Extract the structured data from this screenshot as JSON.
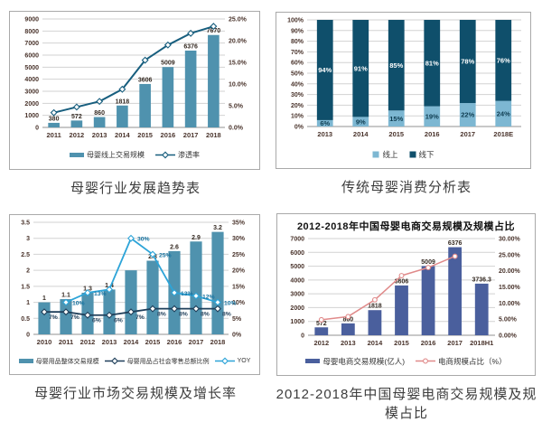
{
  "captions": {
    "tl": "母婴行业发展趋势表",
    "tr": "传统母婴消费分析表",
    "bl": "母婴行业市场交易规模及增长率",
    "br": "2012-2018年中国母婴电商交易规模及规模占比"
  },
  "colors": {
    "teal_bar": "#4f92ae",
    "dark_teal_line": "#175e7e",
    "stack_light": "#7db7d2",
    "stack_dark": "#0f4f6b",
    "navy_line": "#1f3f5a",
    "yoy_blue": "#2da4d8",
    "indigo_bar": "#4a5f9d",
    "salmon_line": "#e08a8a",
    "tick_text": "#4a342c",
    "grid_line": "#d2d2d2"
  },
  "chart_data": [
    {
      "id": "tl",
      "type": "bar-line",
      "caption": "母婴行业发展趋势表",
      "categories": [
        "2011",
        "2012",
        "2013",
        "2014",
        "2015",
        "2016",
        "2017",
        "2018"
      ],
      "left_axis": {
        "min": 0,
        "max": 9000,
        "tick_labels": [
          "0",
          "1000",
          "2000",
          "3000",
          "4000",
          "5000",
          "6000",
          "7000",
          "8000",
          "9000"
        ]
      },
      "right_axis": {
        "min": 0,
        "max": 25,
        "tick_labels": [
          "0.0%",
          "5.0%",
          "10.0%",
          "15.0%",
          "20.0%",
          "25.0%"
        ]
      },
      "bars": {
        "name": "母婴线上交易规模",
        "color": "#4f92ae",
        "values": [
          380,
          572,
          860,
          1818,
          3606,
          5009,
          6376,
          7670
        ],
        "labels": [
          "380",
          "572",
          "860",
          "1818",
          "3606",
          "5009",
          "6376",
          "7670"
        ]
      },
      "lines": [
        {
          "name": "渗透率",
          "axis": "right",
          "color": "#175e7e",
          "marker": "diamond",
          "values": [
            3.4,
            4.7,
            6,
            8.8,
            15.5,
            19,
            21.7,
            23.3
          ],
          "labels": []
        }
      ],
      "legend": [
        {
          "type": "bar",
          "color": "#4f92ae",
          "label": "母婴线上交易规模"
        },
        {
          "type": "line",
          "color": "#175e7e",
          "marker": "diamond",
          "label": "渗透率"
        }
      ]
    },
    {
      "id": "tr",
      "type": "stacked-bar",
      "caption": "传统母婴消费分析表",
      "categories": [
        "2013",
        "2014",
        "2015",
        "2016",
        "2017",
        "2018E"
      ],
      "left_axis": {
        "min": 0,
        "max": 100,
        "tick_labels": [
          "0%",
          "10%",
          "20%",
          "30%",
          "40%",
          "50%",
          "60%",
          "70%",
          "80%",
          "90%",
          "100%"
        ]
      },
      "stacks": [
        {
          "name": "线上",
          "color": "#7db7d2",
          "label_color": "#0e3c50",
          "values": [
            6,
            9,
            15,
            19,
            22,
            24
          ],
          "labels": [
            "6%",
            "9%",
            "15%",
            "19%",
            "22%",
            "24%"
          ]
        },
        {
          "name": "线下",
          "color": "#0f4f6b",
          "label_color": "#ffffff",
          "values": [
            94,
            91,
            85,
            81,
            78,
            76
          ],
          "labels": [
            "94%",
            "91%",
            "85%",
            "81%",
            "78%",
            "76%"
          ]
        }
      ],
      "legend": [
        {
          "type": "square",
          "color": "#7db7d2",
          "label": "线上"
        },
        {
          "type": "square",
          "color": "#0f4f6b",
          "label": "线下"
        }
      ]
    },
    {
      "id": "bl",
      "type": "bar-line",
      "caption": "母婴行业市场交易规模及增长率",
      "categories": [
        "2010",
        "2011",
        "2012",
        "2013",
        "2014",
        "2015",
        "2016",
        "2017",
        "2018"
      ],
      "left_axis": {
        "min": 0,
        "max": 3.5,
        "tick_labels": [
          "0",
          "0.5",
          "1",
          "1.5",
          "2",
          "2.5",
          "3",
          "3.5"
        ]
      },
      "right_axis": {
        "min": 0,
        "max": 35,
        "tick_labels": [
          "0%",
          "5%",
          "10%",
          "15%",
          "20%",
          "25%",
          "30%",
          "35%"
        ]
      },
      "bars": {
        "name": "母婴用品整体交易规模",
        "color": "#4f92ae",
        "values": [
          1,
          1.1,
          1.3,
          1.4,
          2,
          2.3,
          2.6,
          2.9,
          3.2
        ],
        "labels": [
          "1",
          "1.1",
          "1.3",
          "1.4",
          "",
          "2.3",
          "2.6",
          "2.9",
          "3.2"
        ]
      },
      "lines": [
        {
          "name": "母婴用品占社会零售总额比例",
          "axis": "right",
          "color": "#1f3f5a",
          "marker": "diamond",
          "values": [
            7,
            7,
            6,
            6,
            7,
            8,
            8,
            8,
            8
          ],
          "labels": [
            "7%",
            "7%",
            "6%",
            "6%",
            "7%",
            "8%",
            "8%",
            "8%",
            "8%"
          ],
          "label_color": "#1f3f5a"
        },
        {
          "name": "YOY",
          "axis": "right",
          "color": "#2da4d8",
          "marker": "diamond",
          "values": [
            null,
            10,
            13,
            14,
            30,
            25,
            13,
            12,
            10
          ],
          "labels": [
            "",
            "10%",
            "13%",
            "",
            "30%",
            "25%",
            "13%",
            "12%",
            "10%"
          ],
          "label_color": "#13719f"
        }
      ],
      "legend": [
        {
          "type": "bar",
          "color": "#4f92ae",
          "label": "母婴用品整体交易规模"
        },
        {
          "type": "line",
          "color": "#1f3f5a",
          "marker": "diamond",
          "label": "母婴用品占社会零售总额比例"
        },
        {
          "type": "line",
          "color": "#2da4d8",
          "marker": "diamond",
          "label": "YOY"
        }
      ]
    },
    {
      "id": "br",
      "type": "bar-line",
      "title": "2012-2018年中国母婴电商交易规模及规模占比",
      "caption": "2012-2018年中国母婴电商交易规模及规模占比",
      "categories": [
        "2012",
        "2013",
        "2014",
        "2015",
        "2016",
        "2017",
        "2018H1"
      ],
      "left_axis": {
        "min": 0,
        "max": 7000,
        "tick_labels": [
          "0",
          "1000",
          "2000",
          "3000",
          "4000",
          "5000",
          "6000",
          "7000"
        ]
      },
      "right_axis": {
        "min": 0,
        "max": 30,
        "tick_labels": [
          "0.00%",
          "5.00%",
          "10.00%",
          "15.00%",
          "20.00%",
          "25.00%",
          "30.00%"
        ]
      },
      "bars": {
        "name": "母婴电商交易规模(亿人)",
        "color": "#4a5f9d",
        "values": [
          572,
          860,
          1818,
          3606,
          5009,
          6376,
          3736.3
        ],
        "labels": [
          "572",
          "860",
          "1818",
          "3606",
          "5009",
          "6376",
          "3736.3"
        ]
      },
      "lines": [
        {
          "name": "电商规模占比（%）",
          "axis": "right",
          "color": "#e08a8a",
          "marker": "circle",
          "values": [
            4.8,
            5.8,
            11,
            18.5,
            21,
            24.5,
            null
          ],
          "labels": []
        }
      ],
      "legend": [
        {
          "type": "bar",
          "color": "#4a5f9d",
          "label": "母婴电商交易规模(亿人)"
        },
        {
          "type": "line",
          "color": "#e08a8a",
          "marker": "circle",
          "label": "电商规模占比（%）"
        }
      ]
    }
  ]
}
